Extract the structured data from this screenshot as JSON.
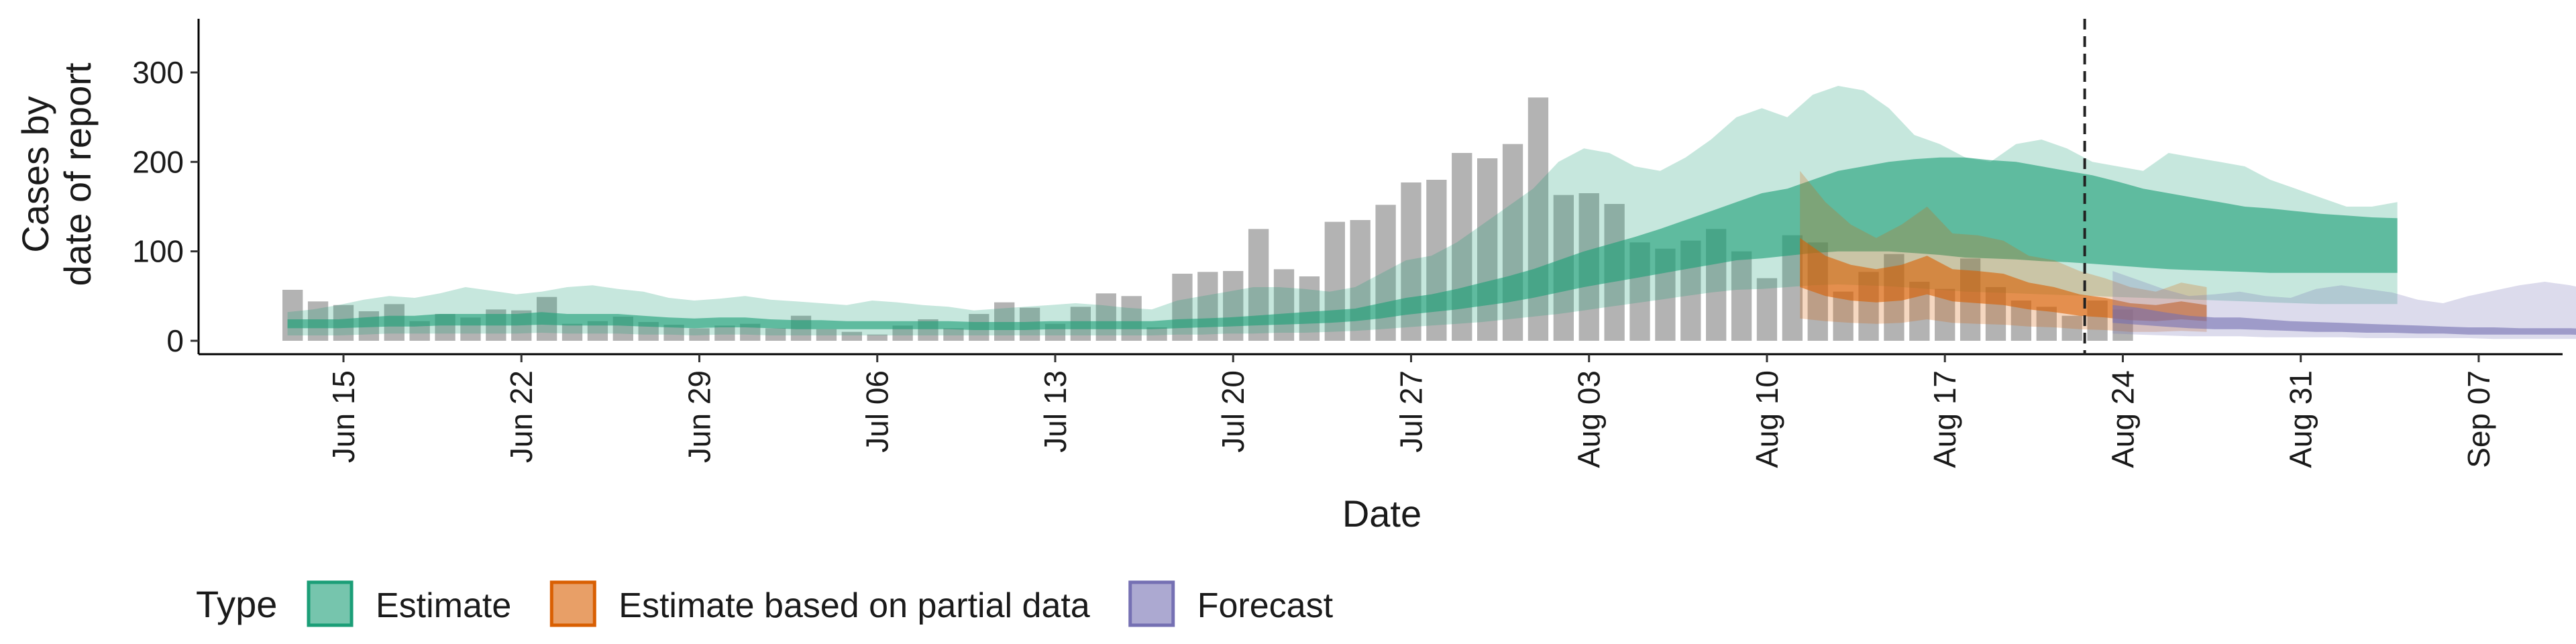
{
  "chart_data": {
    "type": "bar",
    "xlabel": "Date",
    "ylabel_line1": "Cases by",
    "ylabel_line2": "date of report",
    "ylim": [
      -15,
      360
    ],
    "yticks": [
      0,
      100,
      200,
      300
    ],
    "date_origin_label": "Jun 15",
    "x_tick_labels": [
      "Jun 15",
      "Jun 22",
      "Jun 29",
      "Jul 06",
      "Jul 13",
      "Jul 20",
      "Jul 27",
      "Aug 03",
      "Aug 10",
      "Aug 17",
      "Aug 24",
      "Aug 31",
      "Sep 07"
    ],
    "x_tick_day_index": [
      0,
      7,
      14,
      21,
      28,
      35,
      42,
      49,
      56,
      63,
      70,
      77,
      84
    ],
    "xlim_day_index": [
      -5.7,
      87.3
    ],
    "vline_day_index": 68.5,
    "grid": false,
    "legend_position": "bottom-left",
    "legend_title": "Type",
    "legend": [
      {
        "label": "Estimate",
        "color": "#1b9e77"
      },
      {
        "label": "Estimate based on partial data",
        "color": "#d95f02"
      },
      {
        "label": "Forecast",
        "color": "#7570b3"
      }
    ],
    "bar_color": "#b3b3b3",
    "bars": [
      {
        "date": "Jun 13",
        "value": 57
      },
      {
        "date": "Jun 14",
        "value": 44
      },
      {
        "date": "Jun 15",
        "value": 40
      },
      {
        "date": "Jun 16",
        "value": 33
      },
      {
        "date": "Jun 17",
        "value": 41
      },
      {
        "date": "Jun 18",
        "value": 22
      },
      {
        "date": "Jun 19",
        "value": 30
      },
      {
        "date": "Jun 20",
        "value": 26
      },
      {
        "date": "Jun 21",
        "value": 35
      },
      {
        "date": "Jun 22",
        "value": 34
      },
      {
        "date": "Jun 23",
        "value": 49
      },
      {
        "date": "Jun 24",
        "value": 19
      },
      {
        "date": "Jun 25",
        "value": 22
      },
      {
        "date": "Jun 26",
        "value": 27
      },
      {
        "date": "Jun 27",
        "value": 21
      },
      {
        "date": "Jun 28",
        "value": 18
      },
      {
        "date": "Jun 29",
        "value": 14
      },
      {
        "date": "Jun 30",
        "value": 17
      },
      {
        "date": "Jul 01",
        "value": 19
      },
      {
        "date": "Jul 02",
        "value": 14
      },
      {
        "date": "Jul 03",
        "value": 28
      },
      {
        "date": "Jul 04",
        "value": 13
      },
      {
        "date": "Jul 05",
        "value": 10
      },
      {
        "date": "Jul 06",
        "value": 7
      },
      {
        "date": "Jul 07",
        "value": 17
      },
      {
        "date": "Jul 08",
        "value": 24
      },
      {
        "date": "Jul 09",
        "value": 14
      },
      {
        "date": "Jul 10",
        "value": 30
      },
      {
        "date": "Jul 11",
        "value": 43
      },
      {
        "date": "Jul 12",
        "value": 37
      },
      {
        "date": "Jul 13",
        "value": 19
      },
      {
        "date": "Jul 14",
        "value": 38
      },
      {
        "date": "Jul 15",
        "value": 53
      },
      {
        "date": "Jul 16",
        "value": 50
      },
      {
        "date": "Jul 17",
        "value": 15
      },
      {
        "date": "Jul 18",
        "value": 75
      },
      {
        "date": "Jul 19",
        "value": 77
      },
      {
        "date": "Jul 20",
        "value": 78
      },
      {
        "date": "Jul 21",
        "value": 125
      },
      {
        "date": "Jul 22",
        "value": 80
      },
      {
        "date": "Jul 23",
        "value": 72
      },
      {
        "date": "Jul 24",
        "value": 133
      },
      {
        "date": "Jul 25",
        "value": 135
      },
      {
        "date": "Jul 26",
        "value": 152
      },
      {
        "date": "Jul 27",
        "value": 177
      },
      {
        "date": "Jul 28",
        "value": 180
      },
      {
        "date": "Jul 29",
        "value": 210
      },
      {
        "date": "Jul 30",
        "value": 204
      },
      {
        "date": "Jul 31",
        "value": 220
      },
      {
        "date": "Aug 01",
        "value": 272
      },
      {
        "date": "Aug 02",
        "value": 163
      },
      {
        "date": "Aug 03",
        "value": 165
      },
      {
        "date": "Aug 04",
        "value": 153
      },
      {
        "date": "Aug 05",
        "value": 110
      },
      {
        "date": "Aug 06",
        "value": 103
      },
      {
        "date": "Aug 07",
        "value": 112
      },
      {
        "date": "Aug 08",
        "value": 125
      },
      {
        "date": "Aug 09",
        "value": 100
      },
      {
        "date": "Aug 10",
        "value": 70
      },
      {
        "date": "Aug 11",
        "value": 118
      },
      {
        "date": "Aug 12",
        "value": 110
      },
      {
        "date": "Aug 13",
        "value": 55
      },
      {
        "date": "Aug 14",
        "value": 77
      },
      {
        "date": "Aug 15",
        "value": 97
      },
      {
        "date": "Aug 16",
        "value": 66
      },
      {
        "date": "Aug 17",
        "value": 58
      },
      {
        "date": "Aug 18",
        "value": 92
      },
      {
        "date": "Aug 19",
        "value": 60
      },
      {
        "date": "Aug 20",
        "value": 45
      },
      {
        "date": "Aug 21",
        "value": 38
      },
      {
        "date": "Aug 22",
        "value": 28
      },
      {
        "date": "Aug 23",
        "value": 45
      },
      {
        "date": "Aug 24",
        "value": 35
      }
    ],
    "bands": [
      {
        "type": "Estimate",
        "color": "#1b9e77",
        "inner_opacity": 0.6,
        "outer_opacity": 0.25,
        "start_day_index": -2.2,
        "step": 1,
        "outer_upper": [
          32,
          35,
          40,
          46,
          50,
          48,
          53,
          60,
          56,
          52,
          55,
          60,
          62,
          58,
          55,
          48,
          45,
          47,
          50,
          46,
          44,
          42,
          40,
          45,
          43,
          40,
          38,
          34,
          36,
          38,
          40,
          42,
          40,
          37,
          35,
          45,
          50,
          55,
          60,
          60,
          58,
          55,
          60,
          75,
          90,
          95,
          110,
          130,
          150,
          170,
          200,
          215,
          210,
          195,
          190,
          205,
          225,
          250,
          260,
          250,
          275,
          285,
          280,
          260,
          230,
          220,
          205,
          200,
          220,
          225,
          215,
          200,
          195,
          190,
          210,
          205,
          200,
          195,
          180,
          170,
          160,
          150,
          150,
          155
        ],
        "inner_upper": [
          24,
          24,
          24,
          26,
          28,
          28,
          30,
          30,
          30,
          30,
          32,
          30,
          30,
          30,
          28,
          26,
          25,
          26,
          26,
          24,
          23,
          23,
          22,
          22,
          22,
          22,
          22,
          21,
          21,
          21,
          22,
          22,
          22,
          22,
          22,
          24,
          25,
          26,
          28,
          30,
          32,
          34,
          36,
          42,
          48,
          52,
          58,
          65,
          72,
          80,
          90,
          100,
          108,
          116,
          125,
          135,
          145,
          155,
          165,
          170,
          180,
          190,
          195,
          200,
          203,
          205,
          205,
          202,
          200,
          195,
          190,
          185,
          178,
          170,
          165,
          160,
          155,
          150,
          148,
          145,
          142,
          140,
          138,
          137
        ],
        "inner_lower": [
          14,
          14,
          14,
          15,
          16,
          16,
          17,
          17,
          17,
          17,
          18,
          17,
          17,
          17,
          16,
          15,
          14,
          15,
          15,
          14,
          13,
          13,
          13,
          13,
          13,
          13,
          13,
          12,
          12,
          12,
          13,
          13,
          13,
          13,
          13,
          14,
          15,
          16,
          17,
          18,
          19,
          20,
          22,
          25,
          29,
          32,
          35,
          39,
          43,
          48,
          54,
          60,
          65,
          70,
          75,
          80,
          85,
          90,
          92,
          95,
          98,
          100,
          100,
          100,
          98,
          96,
          93,
          92,
          91,
          89,
          88,
          86,
          84,
          82,
          80,
          79,
          78,
          77,
          76,
          76,
          76,
          76,
          76,
          76
        ],
        "outer_lower": [
          6,
          6,
          6,
          7,
          8,
          8,
          8,
          8,
          8,
          8,
          9,
          8,
          8,
          8,
          7,
          7,
          6,
          7,
          7,
          6,
          6,
          6,
          6,
          6,
          6,
          6,
          6,
          6,
          6,
          6,
          6,
          6,
          6,
          6,
          6,
          7,
          7,
          8,
          8,
          9,
          9,
          10,
          11,
          13,
          15,
          17,
          19,
          21,
          24,
          27,
          30,
          34,
          38,
          42,
          46,
          50,
          54,
          57,
          58,
          60,
          62,
          63,
          62,
          61,
          59,
          57,
          55,
          54,
          53,
          52,
          51,
          50,
          49,
          48,
          47,
          46,
          45,
          44,
          43,
          42,
          41,
          41,
          41,
          41
        ]
      },
      {
        "type": "Estimate based on partial data",
        "color": "#d95f02",
        "inner_opacity": 0.6,
        "outer_opacity": 0.25,
        "start_day_index": 57.3,
        "step": 1,
        "outer_upper": [
          190,
          155,
          130,
          115,
          130,
          150,
          120,
          118,
          112,
          95,
          90,
          78,
          70,
          60,
          55,
          65,
          60
        ],
        "inner_upper": [
          115,
          95,
          85,
          80,
          85,
          95,
          80,
          78,
          75,
          65,
          60,
          52,
          48,
          42,
          40,
          44,
          40
        ],
        "inner_lower": [
          60,
          50,
          45,
          43,
          45,
          52,
          44,
          42,
          40,
          35,
          32,
          28,
          26,
          23,
          22,
          24,
          22
        ],
        "outer_lower": [
          25,
          22,
          20,
          19,
          20,
          24,
          20,
          19,
          18,
          16,
          15,
          13,
          12,
          10,
          10,
          11,
          10
        ]
      },
      {
        "type": "Forecast",
        "color": "#7570b3",
        "inner_opacity": 0.6,
        "outer_opacity": 0.25,
        "start_day_index": 69.6,
        "step": 1,
        "outer_upper": [
          78,
          68,
          58,
          50,
          52,
          55,
          50,
          48,
          58,
          62,
          58,
          54,
          46,
          42,
          50,
          56,
          62,
          66,
          62,
          56,
          56,
          60
        ],
        "inner_upper": [
          40,
          37,
          32,
          28,
          26,
          26,
          24,
          22,
          21,
          20,
          19,
          18,
          17,
          16,
          15,
          15,
          14,
          14,
          14,
          13,
          13,
          13
        ],
        "inner_lower": [
          20,
          18,
          16,
          14,
          13,
          13,
          12,
          11,
          10,
          10,
          9,
          9,
          8,
          8,
          7,
          7,
          7,
          7,
          7,
          6,
          6,
          6
        ],
        "outer_lower": [
          8,
          7,
          6,
          5,
          5,
          5,
          4,
          4,
          4,
          4,
          3,
          3,
          3,
          3,
          3,
          2,
          2,
          2,
          2,
          2,
          2,
          2
        ]
      }
    ]
  }
}
